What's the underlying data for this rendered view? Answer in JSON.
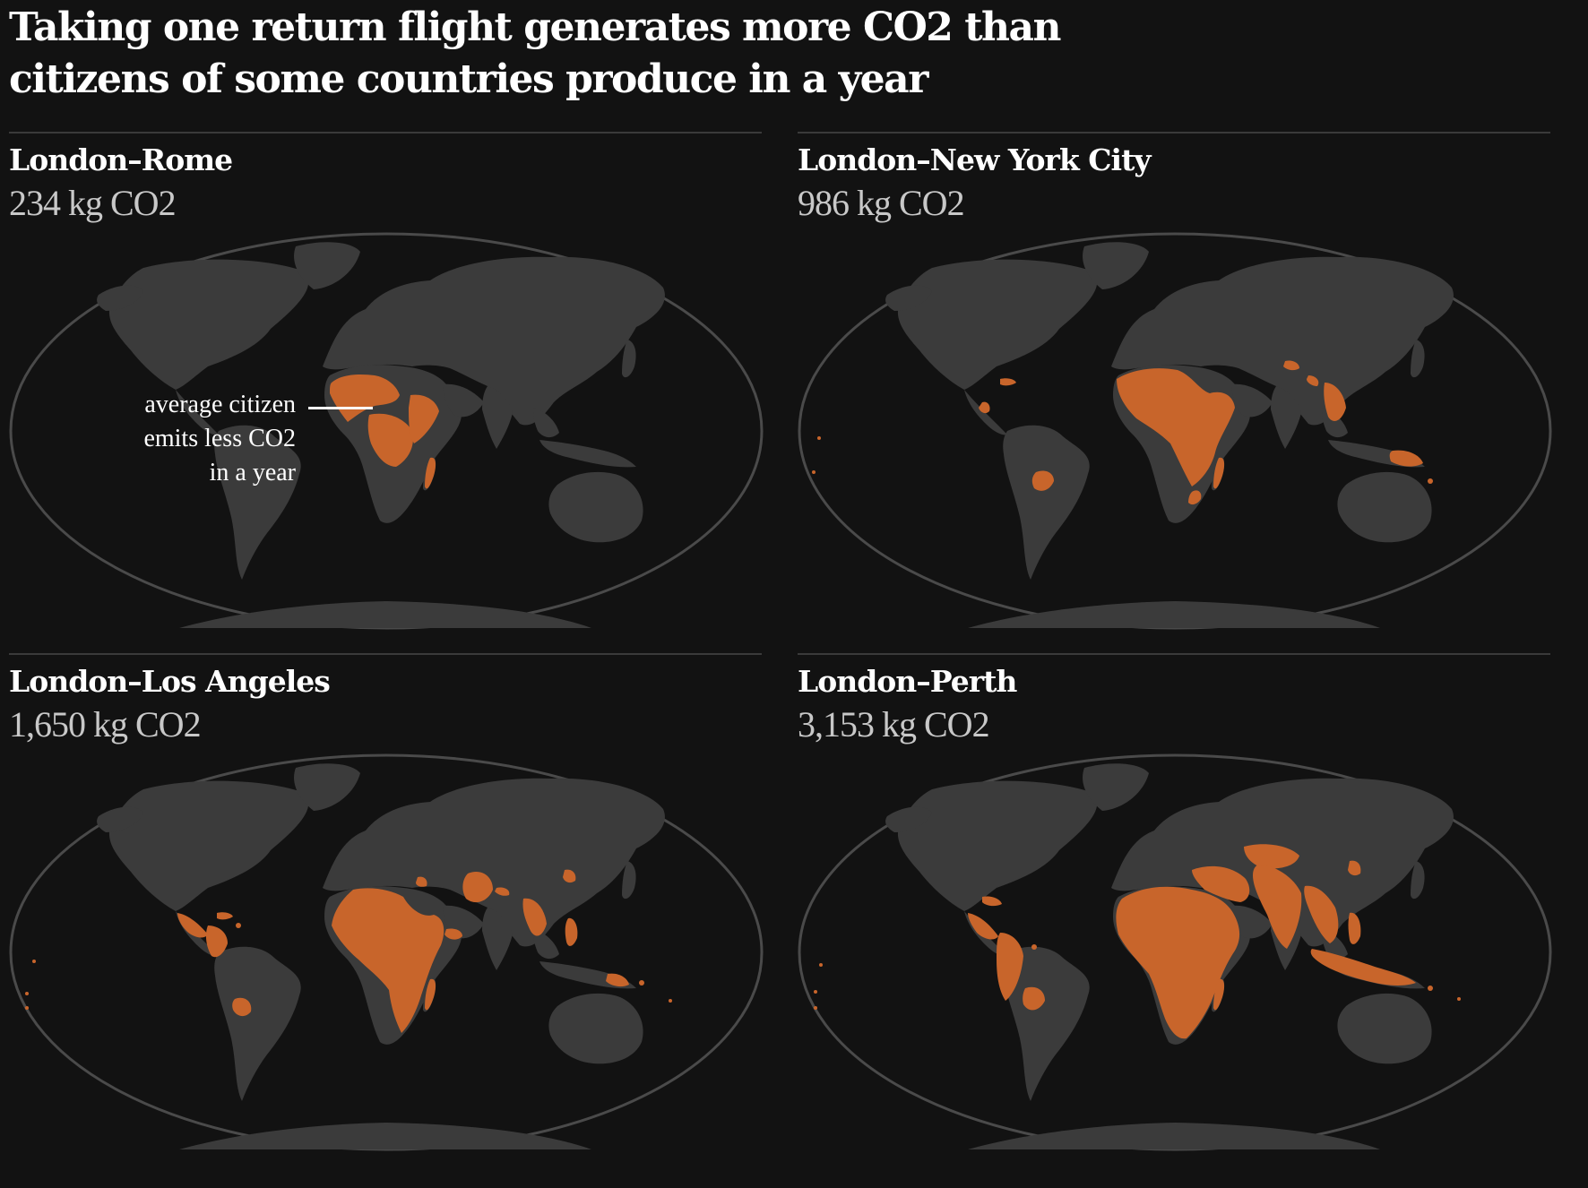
{
  "headline": "Taking one return flight generates more CO2 than citizens of some countries produce in a year",
  "colors": {
    "background": "#121212",
    "land": "#3b3b3b",
    "highlight": "#c8652b",
    "outline": "#4a4a4a"
  },
  "panels": [
    {
      "route": "London–Rome",
      "emissions": "234 kg CO2",
      "kg_co2": 234,
      "highlighted_regions": [
        "sahel-west-africa",
        "central-africa",
        "horn-of-africa",
        "madagascar"
      ]
    },
    {
      "route": "London–New York City",
      "emissions": "986 kg CO2",
      "kg_co2": 986,
      "highlighted_regions": [
        "sub-saharan-africa",
        "haiti",
        "central-america",
        "paraguay-bolivia",
        "nepal",
        "myanmar",
        "papua-new-guinea",
        "pacific-islands"
      ]
    },
    {
      "route": "London–Los Angeles",
      "emissions": "1,650 kg CO2",
      "kg_co2": 1650,
      "highlighted_regions": [
        "sub-saharan-africa",
        "central-america",
        "caribbean",
        "colombia",
        "bolivia",
        "pakistan-afghanistan",
        "myanmar",
        "philippines",
        "pacific-islands",
        "north-korea"
      ]
    },
    {
      "route": "London–Perth",
      "emissions": "3,153 kg CO2",
      "kg_co2": 3153,
      "highlighted_regions": [
        "africa",
        "central-america",
        "caribbean",
        "andes",
        "middle-east",
        "central-asia",
        "south-asia",
        "southeast-asia",
        "indonesia",
        "pacific-islands"
      ]
    }
  ],
  "annotation": {
    "line1": "average citizen",
    "line2": "emits less CO2",
    "line3": "in a year"
  }
}
